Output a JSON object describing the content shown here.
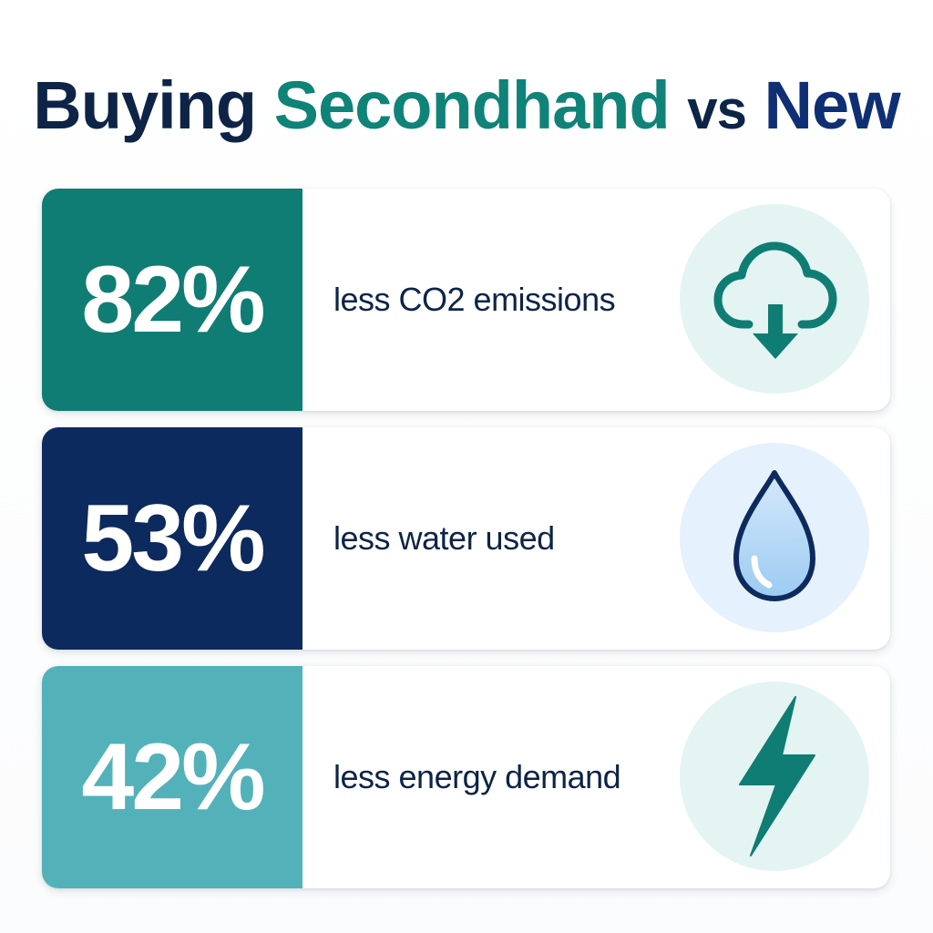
{
  "title": {
    "part1": "Buying",
    "part2": "Secondhand",
    "part3": "vs",
    "part4": "New"
  },
  "stats": [
    {
      "value": "82%",
      "label": "less CO2 emissions",
      "icon": "cloud-download-icon",
      "color": "#0f7d73"
    },
    {
      "value": "53%",
      "label": "less water used",
      "icon": "water-drop-icon",
      "color": "#0d2a5e"
    },
    {
      "value": "42%",
      "label": "less energy demand",
      "icon": "lightning-bolt-icon",
      "color": "#53b2b9"
    }
  ],
  "colors": {
    "navy": "#0d2447",
    "teal": "#0f8378",
    "light_teal": "#53b2b9",
    "blue": "#0e2f73"
  }
}
